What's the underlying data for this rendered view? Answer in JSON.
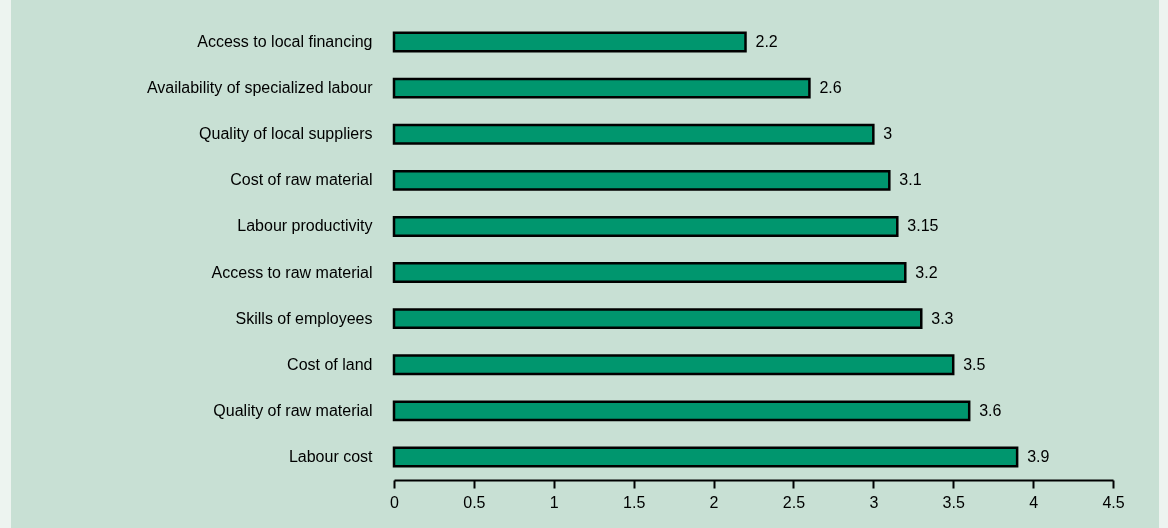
{
  "chart_data": {
    "type": "bar",
    "orientation": "horizontal",
    "categories": [
      "Access to local financing",
      "Availability of specialized labour",
      "Quality of local suppliers",
      "Cost of raw material",
      "Labour productivity",
      "Access to raw material",
      "Skills of employees",
      "Cost of land",
      "Quality of raw material",
      "Labour cost"
    ],
    "values": [
      2.2,
      2.6,
      3,
      3.1,
      3.15,
      3.2,
      3.3,
      3.5,
      3.6,
      3.9
    ],
    "color": "#00966e",
    "xlim": [
      0,
      4.5
    ],
    "xticks": [
      0,
      0.5,
      1,
      1.5,
      2,
      2.5,
      3,
      3.5,
      4,
      4.5
    ],
    "data_labels": true
  }
}
